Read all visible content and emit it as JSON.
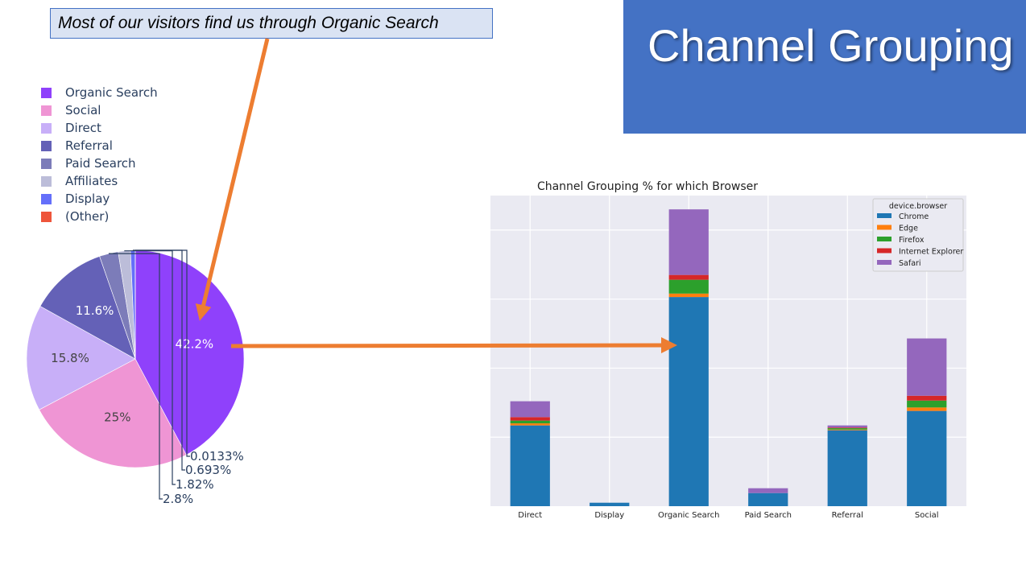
{
  "callout": {
    "text": "Most of our visitors find us through Organic Search"
  },
  "title_box": {
    "text": "Channel Grouping",
    "color": "#4472c4"
  },
  "arrow_color": "#ed7d31",
  "chart_data": [
    {
      "type": "pie",
      "legend": {
        "placement": "top-left"
      },
      "slices": [
        {
          "label": "Organic Search",
          "value": 42.2,
          "text": "42.2%",
          "color": "#8f41fb"
        },
        {
          "label": "Social",
          "value": 25.0,
          "text": "25%",
          "color": "#ef95d4"
        },
        {
          "label": "Direct",
          "value": 15.8,
          "text": "15.8%",
          "color": "#c8aff8"
        },
        {
          "label": "Referral",
          "value": 11.6,
          "text": "11.6%",
          "color": "#6461b7"
        },
        {
          "label": "Paid Search",
          "value": 2.8,
          "text": "2.8%",
          "color": "#7c7cb9"
        },
        {
          "label": "Affiliates",
          "value": 1.82,
          "text": "1.82%",
          "color": "#bcbdd9"
        },
        {
          "label": "Display",
          "value": 0.693,
          "text": "0.693%",
          "color": "#646ffa"
        },
        {
          "label": "(Other)",
          "value": 0.0133,
          "text": "0.0133%",
          "color": "#ee553b"
        }
      ]
    },
    {
      "type": "bar",
      "stacked": true,
      "title": "Channel Grouping % for which Browser",
      "categories": [
        "Direct",
        "Display",
        "Organic Search",
        "Paid Search",
        "Referral",
        "Social"
      ],
      "ylim": [
        0,
        45
      ],
      "grid": true,
      "legend": {
        "title": "device.browser",
        "placement": "top-right"
      },
      "series": [
        {
          "name": "Chrome",
          "color": "#1f77b4",
          "values": [
            11.7,
            0.5,
            30.3,
            1.9,
            11.0,
            13.8
          ]
        },
        {
          "name": "Edge",
          "color": "#ff7f0e",
          "values": [
            0.3,
            0.0,
            0.5,
            0.0,
            0.1,
            0.5
          ]
        },
        {
          "name": "Firefox",
          "color": "#2ca02c",
          "values": [
            0.4,
            0.0,
            2.0,
            0.0,
            0.2,
            1.0
          ]
        },
        {
          "name": "Internet Explorer",
          "color": "#d62728",
          "values": [
            0.5,
            0.0,
            0.7,
            0.0,
            0.1,
            0.7
          ]
        },
        {
          "name": "Safari",
          "color": "#9467bd",
          "values": [
            2.3,
            0.0,
            9.5,
            0.7,
            0.3,
            8.3
          ]
        }
      ]
    }
  ]
}
